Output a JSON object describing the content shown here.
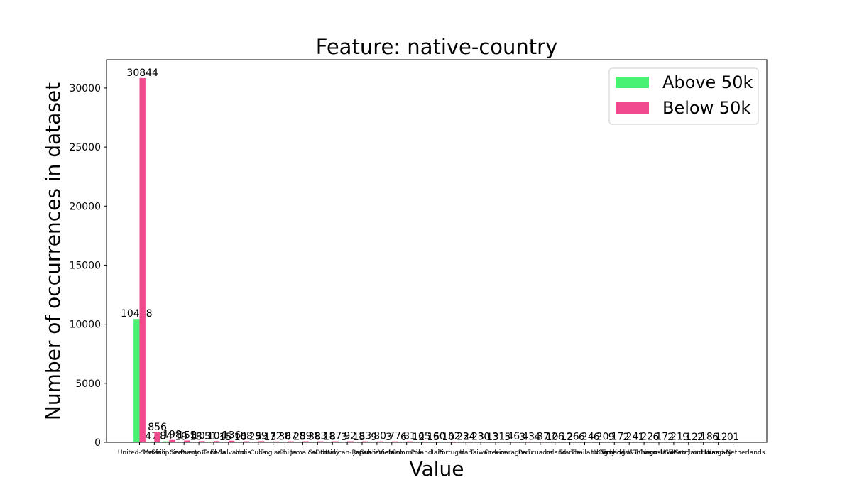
{
  "chart_data": {
    "type": "bar",
    "title": "Feature: native-country",
    "xlabel": "Value",
    "ylabel": "Number of occurrences in dataset",
    "ylim": [
      0,
      32400
    ],
    "yticks": [
      0,
      5000,
      10000,
      15000,
      20000,
      25000,
      30000
    ],
    "legend_position": "top-right",
    "categories": [
      "United-States",
      "Mexico",
      "Philippines",
      "Germany",
      "Puerto-Rico",
      "Canada",
      "El-Salvador",
      "India",
      "Cuba",
      "England",
      "China",
      "Jamaica",
      "South",
      "Italy",
      "Dominican-Republic",
      "Japan",
      "Guatemala",
      "Vietnam",
      "Columbia",
      "Poland",
      "Haiti",
      "Portugal",
      "Iran",
      "Taiwan",
      "Greece",
      "Nicaragua",
      "Peru",
      "Ecuador",
      "Ireland",
      "France",
      "Thailand",
      "Hong",
      "Cambodia",
      "Trinadad&Tobago",
      "Outlying-US(Guam-USVI-etc)",
      "Yugoslavia",
      "Laos",
      "Scotland",
      "Honduras",
      "Hungary",
      "Holand-Netherlands"
    ],
    "tick_labels": [
      "United-States",
      "Mexico",
      "Philippines",
      "Germany",
      "Puerto-Rico",
      "Canada",
      "El-Salvador",
      "India",
      "Cuba",
      "England",
      "China",
      "Jamaica",
      "South",
      "Italy",
      "Dominican-Republic",
      "Japan",
      "Guatemala",
      "Vietnam",
      "Columbia",
      "Poland",
      "Haiti",
      "Portugal",
      "Iran",
      "Taiwan",
      "Greece",
      "Nicaragua",
      "Peru",
      "Ecuador",
      "Ireland",
      "France",
      "Thailand",
      "Hong",
      "Cambodia",
      "Trinadad&Tobago",
      "Outlying-US(Guam-USVI-etc)",
      "Yugoslavia",
      "Laos",
      "Scotland",
      "Honduras",
      "Hungary",
      "Holand-Netherlands"
    ],
    "series": [
      {
        "name": "Above 50k",
        "color": "#4af274",
        "values": [
          10448,
          47,
          84,
          19,
          18,
          51,
          15,
          10,
          25,
          13,
          36,
          25,
          38,
          18,
          3,
          15,
          9,
          3,
          6,
          12,
          15,
          10,
          22,
          23,
          13,
          5,
          3,
          4,
          10,
          12,
          6,
          6,
          9,
          2,
          1,
          6,
          2,
          9,
          2,
          6,
          0
        ],
        "labels": [
          "10448",
          "47",
          "84",
          "19",
          "18",
          "51",
          "15",
          "10",
          "25",
          "13",
          "36",
          "25",
          "38",
          "18",
          "3",
          "15",
          "9",
          "3",
          "6",
          "12",
          "15",
          "10",
          "22",
          "23",
          "13",
          "5",
          "3",
          "4",
          "10",
          "12",
          "6",
          "6",
          "9",
          "2",
          "1",
          "6",
          "2",
          "9",
          "2",
          "6",
          "0"
        ]
      },
      {
        "name": "Below 50k",
        "color": "#f24a8e",
        "values": [
          30844,
          856,
          198,
          155,
          103,
          104,
          136,
          88,
          99,
          72,
          87,
          89,
          83,
          87,
          92,
          83,
          80,
          77,
          81,
          65,
          60,
          52,
          34,
          30,
          31,
          46,
          43,
          37,
          26,
          26,
          24,
          20,
          17,
          24,
          22,
          17,
          21,
          12,
          18,
          12,
          1
        ],
        "labels": [
          "30844",
          "856",
          "198",
          "155",
          "103",
          "104",
          "136",
          "88",
          "99",
          "72",
          "87",
          "89",
          "83",
          "87",
          "92",
          "83",
          "80",
          "77",
          "81",
          "65",
          "60",
          "52",
          "34",
          "30",
          "31",
          "46",
          "43",
          "37",
          "26",
          "26",
          "24",
          "20",
          "17",
          "24",
          "22",
          "17",
          "21",
          "12",
          "18",
          "12",
          "1"
        ]
      }
    ]
  }
}
